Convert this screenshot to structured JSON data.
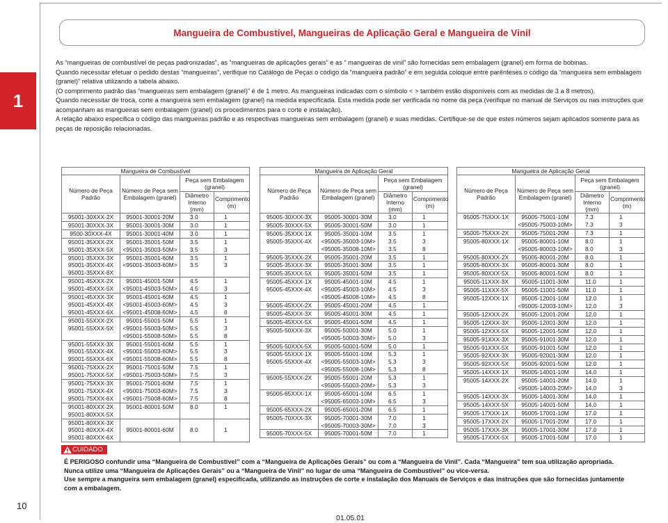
{
  "tab": "1",
  "header": {
    "title": "Mangueira de Combustível, Mangueiras de Aplicação Geral e Mangueira de Vinil"
  },
  "bullets": [
    {
      "text": "As “mangueiras de combustível de peças padronizadas”, as “mangueiras de aplicações gerais” e as “ mangueiras de vinil” são fornecidas sem embalagem (granel) em forma de bobinas."
    },
    {
      "text": "Quando necessitar efetuar o pedido destas “mangueiras”, verifique no Catálogo de Peças o código da “mangueira padrão” e em seguida coloque entre parênteses o código da “mangueira sem embalagem (granel)” relativa utilizando a tabela abaixo.",
      "note": "(O comprimento padrão das “mangueiras sem embalagem (granel)” é de 1 metro. As mangueiras indicadas com o símbolo <  > também estão disponíveis com as medidas de 3 a 8 metros)."
    },
    {
      "text": "Quando necessitar de troca, corte a mangueira sem embalagem (granel) na medida especificada. Esta medida pode ser verificada no nome da peça (verifique no manual de Serviços ou nas instruções que acompanham as mangueiras sem embalagem (granel) os procedimentos para o corte e instalação)."
    },
    {
      "text": "A relação abaixo especifica o código das mangueiras padrão e as respectivas mangueiras sem embalagem (granel) e suas medidas. Certifique-se de que estes números sejam aplicados somente para as peças de reposição relacionadas."
    }
  ],
  "tables": [
    {
      "title": "Mangueira de Combustível",
      "headers": {
        "part_std": "Número de Peça Padrão",
        "part_bulk": "Número de Peça sem Embalagem (granel)",
        "bulk": "Peça sem Embalagem (granel)",
        "diameter": "Diâmetro Interno (mm)",
        "length": "Comprimento (m)"
      },
      "groups": [
        [
          [
            "95001-30XXX-2X",
            "95001-30001-20M",
            "3.0",
            "1"
          ]
        ],
        [
          [
            "95001-30XXX-3X",
            "95001-30001-30M",
            "3.0",
            "1"
          ]
        ],
        [
          [
            "9500-30XXX-4X",
            "95001-30001-40M",
            "3.0",
            "1"
          ]
        ],
        [
          [
            "95001-35XXX-2X",
            "95001-35001-50M",
            "3.5",
            "1"
          ],
          [
            "95001-35XXX-5X",
            "<95001-35003-50M>",
            "3.5",
            "3"
          ]
        ],
        [
          [
            "95001-35XXX-3X",
            "95001-35001-60M",
            "3.5",
            "1"
          ],
          [
            "95001-35XXX-4X",
            "<95001-35003-60M>",
            "3.5",
            "3"
          ],
          [
            "95001-35XXX-6X",
            null,
            null,
            null
          ]
        ],
        [
          [
            "95001-45XXX-2X",
            "95001-45001-50M",
            "4.5",
            "1"
          ],
          [
            "95001-45XXX-5X",
            "<95001-45003-50M>",
            "4.5",
            "3"
          ]
        ],
        [
          [
            "95001-45XXX-3X",
            "95001-45001-60M",
            "4.5",
            "1"
          ],
          [
            "95001-45XXX-4X",
            "<95001-45003-60M>",
            "4.5",
            "3"
          ],
          [
            "95001-45XXX-6X",
            "<95001-45008-60M>",
            "4.5",
            "8"
          ]
        ],
        [
          [
            "95001-55XXX-2X",
            "95001-55001-50M",
            "5.5",
            "1"
          ],
          [
            "95001-55XXX-5X",
            "<95001-55003-50M>",
            "5.5",
            "3"
          ],
          [
            null,
            "<95001-55008-50M>",
            "5.5",
            "8"
          ]
        ],
        [
          [
            "95001-55XXX-3X",
            "95001-55001-60M",
            "5.5",
            "1"
          ],
          [
            "95001-55XXX-4X",
            "<95001-55003-60M>",
            "5.5",
            "3"
          ],
          [
            "95001-55XXX-6X",
            "<95001-55008-60M>",
            "5.5",
            "8"
          ]
        ],
        [
          [
            "95001-75XXX-2X",
            "95001-75001-50M",
            "7.5",
            "1"
          ],
          [
            "95001-75XXX-5X",
            "<95001-75003-50M>",
            "7.5",
            "3"
          ]
        ],
        [
          [
            "95001-75XXX-3X",
            "95001-75001-60M",
            "7.5",
            "1"
          ],
          [
            "95001-75XXX-4X",
            "<95001-75003-60M>",
            "7.5",
            "3"
          ],
          [
            "95001-75XXX-6X",
            "<95001-75008-60M>",
            "7.5",
            "8"
          ]
        ],
        [
          [
            "95001-80XXX-2X",
            "95001-80001-50M",
            "8.0",
            "1"
          ],
          [
            "95001-80XXX-5X",
            null,
            null,
            null
          ]
        ],
        [
          [
            "95001-80XXX-3X",
            null,
            null,
            null
          ],
          [
            "95001-80XXX-4X",
            "95001-80001-60M",
            "8.0",
            "1"
          ],
          [
            "95001-80XXX-6X",
            null,
            null,
            null
          ]
        ]
      ]
    },
    {
      "title": "Mangueira de Aplicação Geral",
      "headers": {
        "part_std": "Número de Peça Padrão",
        "part_bulk": "Número de Peça sem Embalagem (granel)",
        "bulk": "Peça sem Embalagem (granel)",
        "diameter": "Diâmetro Interno (mm)",
        "length": "Comprimento (m)"
      },
      "groups": [
        [
          [
            "95005-30XXX-3X",
            "95005-30001-30M",
            "3.0",
            "1"
          ]
        ],
        [
          [
            "95005-30XXX-5X",
            "95005-30001-50M",
            "3.0",
            "1"
          ]
        ],
        [
          [
            "95005-35XXX-1X",
            "95005-35001-10M",
            "3.5",
            "1"
          ],
          [
            "95005-35XXX-4X",
            "<95005-35003-10M>",
            "3.5",
            "3"
          ],
          [
            null,
            "<95005-35008-10M>",
            "3.5",
            "8"
          ]
        ],
        [
          [
            "95005-35XXX-2X",
            "95005-35001-20M",
            "3.5",
            "1"
          ]
        ],
        [
          [
            "95005-35XXX-3X",
            "95005-35001-30M",
            "3.5",
            "1"
          ]
        ],
        [
          [
            "95005-35XXX-5X",
            "95005-35001-50M",
            "3.5",
            "1"
          ]
        ],
        [
          [
            "95005-45XXX-1X",
            "95005-45001-10M",
            "4.5",
            "1"
          ],
          [
            "95005-45XXX-4X",
            "<95005-45003-10M>",
            "4.5",
            "3"
          ],
          [
            null,
            "<95005-45008-10M>",
            "4.5",
            "8"
          ]
        ],
        [
          [
            "95005-45XXX-2X",
            "95005-45001-20M",
            "4.5",
            "1"
          ]
        ],
        [
          [
            "95005-45XXX-3X",
            "95005-45001-30M",
            "4.5",
            "1"
          ]
        ],
        [
          [
            "95005-45XXX-5X",
            "95005-45001-50M",
            "4.5",
            "1"
          ]
        ],
        [
          [
            "95005-50XXX-3X",
            "95005-50001-30M",
            "5.0",
            "1"
          ],
          [
            null,
            "<95005-50003-30M>",
            "5.0",
            "3"
          ]
        ],
        [
          [
            "95005-50XXX-5X",
            "95005-50001-50M",
            "5.0",
            "1"
          ]
        ],
        [
          [
            "95005-55XXX-1X",
            "95005-55001-10M",
            "5.3",
            "1"
          ],
          [
            "95005-55XXX-4X",
            "<95005-55003-10M>",
            "5.3",
            "3"
          ],
          [
            null,
            "<95005-55008-10M>",
            "5.3",
            "8"
          ]
        ],
        [
          [
            "95005-55XXX-2X",
            "95005-55001-20M",
            "5.3",
            "1"
          ],
          [
            null,
            "<95005-55003-20M>",
            "5.3",
            "3"
          ]
        ],
        [
          [
            "95005-65XXX-1X",
            "95005-65001-10M",
            "6.5",
            "1"
          ],
          [
            null,
            "<95005-65003-10M>",
            "6.5",
            "3"
          ]
        ],
        [
          [
            "95005-65XXX-2X",
            "95005-65001-20M",
            "6.5",
            "1"
          ]
        ],
        [
          [
            "95005-70XXX-3X",
            "95005-70001-30M",
            "7.0",
            "1"
          ],
          [
            null,
            "<95005-70003-30M>",
            "7.0",
            "3"
          ]
        ],
        [
          [
            "95005-70XXX-5X",
            "95005-70001-50M",
            "7.0",
            "1"
          ]
        ]
      ]
    },
    {
      "title": "Mangueira de Aplicação Geral",
      "headers": {
        "part_std": "Número de Peça Padrão",
        "part_bulk": "Número de Peça sem Embalagem (granel)",
        "bulk": "Peça sem Embalagem (granel)",
        "diameter": "Diâmetro Interno (mm)",
        "length": "Comprimento (m)"
      },
      "groups": [
        [
          [
            "95005-75XXX-1X",
            "95005-75001-10M",
            "7.3",
            "1"
          ],
          [
            null,
            "<95005-75003-10M>",
            "7.3",
            "3"
          ]
        ],
        [
          [
            "95005-75XXX-2X",
            "95005-75001-20M",
            "7.3",
            "1"
          ]
        ],
        [
          [
            "95005-80XXX-1X",
            "95005-80001-10M",
            "8.0",
            "1"
          ],
          [
            null,
            "<95005-80003-10M>",
            "8.0",
            "3"
          ]
        ],
        [
          [
            "95005-80XXX-2X",
            "95005-80001-20M",
            "8.0",
            "1"
          ]
        ],
        [
          [
            "95005-80XXX-3X",
            "95005-80001-30M",
            "8.0",
            "1"
          ]
        ],
        [
          [
            "95005-80XXX-5X",
            "95005-80001-50M",
            "8.0",
            "1"
          ]
        ],
        [
          [
            "95005-11XXX-3X",
            "95005-11001-30M",
            "11.0",
            "1"
          ]
        ],
        [
          [
            "95005-11XXX-5X",
            "95005-11001-50M",
            "11.0",
            "1"
          ]
        ],
        [
          [
            "95005-12XXX-1X",
            "95005-12001-10M",
            "12.0",
            "1"
          ],
          [
            null,
            "<95005-12003-10M>",
            "12.0",
            "3"
          ]
        ],
        [
          [
            "95005-12XXX-2X",
            "95005-12001-20M",
            "12.0",
            "1"
          ]
        ],
        [
          [
            "95005-12XXX-3X",
            "95005-12001-30M",
            "12.0",
            "1"
          ]
        ],
        [
          [
            "95005-12XXX-5X",
            "95005-12001-50M",
            "12.0",
            "1"
          ]
        ],
        [
          [
            "95005-91XXX-3X",
            "95005-91001-30M",
            "12.0",
            "1"
          ]
        ],
        [
          [
            "95005-91XXX-5X",
            "95005-91001-50M",
            "12.0",
            "1"
          ]
        ],
        [
          [
            "95005-92XXX-3X",
            "95005-92001-30M",
            "12.0",
            "1"
          ]
        ],
        [
          [
            "95005-92XXX-5X",
            "95005-92001-50M",
            "12.0",
            "1"
          ]
        ],
        [
          [
            "95005-14XXX-1X",
            "95005-14001-10M",
            "14.0",
            "1"
          ]
        ],
        [
          [
            "95005-14XXX-2X",
            "95005-14001-20M",
            "14.0",
            "1"
          ],
          [
            null,
            "<95005-14003-20M>",
            "14.0",
            "3"
          ]
        ],
        [
          [
            "95005-14XXX-3X",
            "95005-14001-30M",
            "14.0",
            "1"
          ]
        ],
        [
          [
            "95005-14XXX-5X",
            "95005-14001-50M",
            "14.0",
            "1"
          ]
        ],
        [
          [
            "95005-17XXX-1X",
            "95005-17001-10M",
            "17.0",
            "1"
          ]
        ],
        [
          [
            "95005-17XXX-2X",
            "95005-17001-20M",
            "17.0",
            "1"
          ]
        ],
        [
          [
            "95005-17XXX-3X",
            "95005-17001-30M",
            "17.0",
            "1"
          ]
        ],
        [
          [
            "95005-17XXX-5X",
            "95005-17001-50M",
            "17.0",
            "1"
          ]
        ]
      ]
    }
  ],
  "caution": {
    "label": "CUIDADO",
    "lines": [
      "É PERIGOSO confundir uma “Mangueira de Combustível” com a “Mangueira de Aplicações Gerais” ou com a “Mangueira de Vinil”. Cada “Mangueira” tem sua utilização apropriada.",
      "Nunca utilize uma “Mangueira de Aplicações Gerais” ou a “Mangueira de Vinil” no lugar de uma “Mangueira de Combustível” ou vice-versa.",
      "Use sempre a mangueira sem embalagem (granel) especificada, utilizando as instruções de corte e instalação dos Manuais de Serviços e das instruções que são fornecidas juntamente com a embalagem."
    ]
  },
  "footer": {
    "page": "10",
    "date": "01.05.01"
  }
}
